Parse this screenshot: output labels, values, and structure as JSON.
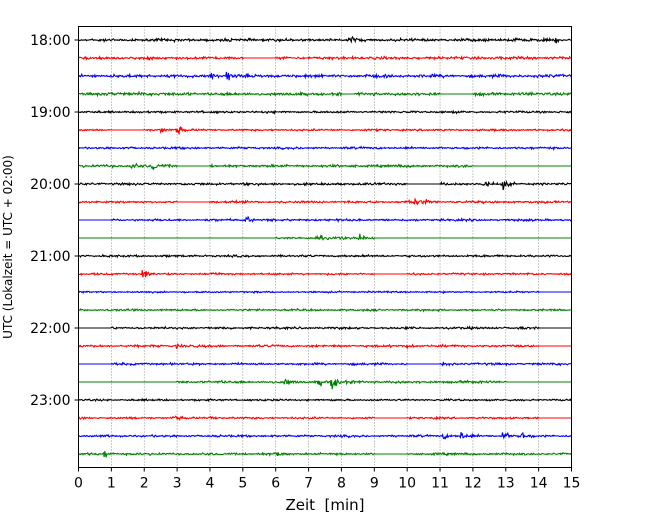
{
  "chart_data": {
    "type": "line",
    "title": "",
    "xlabel": "Zeit  [min]",
    "ylabel": "UTC (Lokalzeit = UTC + 02:00)",
    "xlim": [
      0,
      15
    ],
    "x_ticks": [
      "0",
      "1",
      "2",
      "3",
      "4",
      "5",
      "6",
      "7",
      "8",
      "9",
      "10",
      "11",
      "12",
      "13",
      "14",
      "15"
    ],
    "y_ticks": [
      {
        "label": "18:00",
        "row": 0
      },
      {
        "label": "19:00",
        "row": 4
      },
      {
        "label": "20:00",
        "row": 8
      },
      {
        "label": "21:00",
        "row": 12
      },
      {
        "label": "22:00",
        "row": 16
      },
      {
        "label": "23:00",
        "row": 20
      }
    ],
    "grid": {
      "vertical": true,
      "style": "dotted"
    },
    "row_interval_minutes": 15,
    "color_cycle": [
      "#000000",
      "#ff0000",
      "#0000ff",
      "#008000"
    ],
    "traces": [
      {
        "start": "18:00",
        "color": "#000000",
        "amp": 2.0,
        "gaps": [],
        "events": [
          {
            "t": 8.3,
            "a": 5
          },
          {
            "t": 13.2,
            "a": 3
          },
          {
            "t": 14.5,
            "a": 3
          }
        ]
      },
      {
        "start": "18:15",
        "color": "#ff0000",
        "amp": 2.0,
        "gaps": [
          [
            5.0,
            6.0
          ]
        ],
        "events": []
      },
      {
        "start": "18:30",
        "color": "#0000ff",
        "amp": 2.2,
        "gaps": [],
        "events": [
          {
            "t": 4.05,
            "a": 6
          },
          {
            "t": 4.5,
            "a": 8
          }
        ]
      },
      {
        "start": "18:45",
        "color": "#008000",
        "amp": 2.2,
        "gaps": [
          [
            8.0,
            8.4
          ],
          [
            11.0,
            12.0
          ]
        ],
        "events": [
          {
            "t": 1.8,
            "a": 3
          }
        ]
      },
      {
        "start": "19:00",
        "color": "#000000",
        "amp": 1.6,
        "gaps": [],
        "events": []
      },
      {
        "start": "19:15",
        "color": "#ff0000",
        "amp": 1.4,
        "gaps": [
          [
            1.0,
            2.0
          ]
        ],
        "events": [
          {
            "t": 2.5,
            "a": 5
          },
          {
            "t": 3.0,
            "a": 8
          }
        ]
      },
      {
        "start": "19:30",
        "color": "#0000ff",
        "amp": 1.6,
        "gaps": [],
        "events": []
      },
      {
        "start": "19:45",
        "color": "#008000",
        "amp": 1.8,
        "gaps": [
          [
            3.0,
            4.0
          ],
          [
            12.0,
            15.0
          ]
        ],
        "events": [
          {
            "t": 1.6,
            "a": 6
          },
          {
            "t": 2.25,
            "a": 6
          }
        ]
      },
      {
        "start": "20:00",
        "color": "#000000",
        "amp": 1.8,
        "gaps": [
          [
            10.0,
            11.0
          ]
        ],
        "events": [
          {
            "t": 12.3,
            "a": 5
          },
          {
            "t": 12.9,
            "a": 7
          }
        ]
      },
      {
        "start": "20:15",
        "color": "#ff0000",
        "amp": 1.6,
        "gaps": [
          [
            3.0,
            4.0
          ]
        ],
        "events": [
          {
            "t": 10.1,
            "a": 10
          },
          {
            "t": 10.5,
            "a": 4
          }
        ]
      },
      {
        "start": "20:30",
        "color": "#0000ff",
        "amp": 1.6,
        "gaps": [
          [
            0.0,
            1.0
          ]
        ],
        "events": [
          {
            "t": 5.1,
            "a": 5
          }
        ]
      },
      {
        "start": "20:45",
        "color": "#008000",
        "amp": 1.6,
        "gaps": [
          [
            0.0,
            6.0
          ],
          [
            9.0,
            15.0
          ]
        ],
        "events": [
          {
            "t": 7.3,
            "a": 3
          },
          {
            "t": 8.0,
            "a": 3
          },
          {
            "t": 8.55,
            "a": 5
          }
        ]
      },
      {
        "start": "21:00",
        "color": "#000000",
        "amp": 1.6,
        "gaps": [],
        "events": []
      },
      {
        "start": "21:15",
        "color": "#ff0000",
        "amp": 1.4,
        "gaps": [
          [
            9.0,
            10.0
          ]
        ],
        "events": [
          {
            "t": 1.95,
            "a": 9
          },
          {
            "t": 4.1,
            "a": 3
          }
        ]
      },
      {
        "start": "21:30",
        "color": "#0000ff",
        "amp": 1.2,
        "gaps": [
          [
            14.0,
            15.0
          ]
        ],
        "events": []
      },
      {
        "start": "21:45",
        "color": "#008000",
        "amp": 1.4,
        "gaps": [],
        "events": []
      },
      {
        "start": "22:00",
        "color": "#000000",
        "amp": 1.6,
        "gaps": [
          [
            0.0,
            1.0
          ],
          [
            14.0,
            15.0
          ]
        ],
        "events": []
      },
      {
        "start": "22:15",
        "color": "#ff0000",
        "amp": 1.6,
        "gaps": [
          [
            14.0,
            15.0
          ]
        ],
        "events": [
          {
            "t": 3.0,
            "a": 3
          },
          {
            "t": 10.0,
            "a": 3
          }
        ]
      },
      {
        "start": "22:30",
        "color": "#0000ff",
        "amp": 1.6,
        "gaps": [
          [
            0.0,
            1.0
          ],
          [
            10.0,
            11.0
          ]
        ],
        "events": [
          {
            "t": 11.1,
            "a": 3
          }
        ]
      },
      {
        "start": "22:45",
        "color": "#008000",
        "amp": 1.8,
        "gaps": [
          [
            0.0,
            3.0
          ],
          [
            13.0,
            15.0
          ]
        ],
        "events": [
          {
            "t": 6.3,
            "a": 5
          },
          {
            "t": 7.3,
            "a": 7
          },
          {
            "t": 7.7,
            "a": 11
          }
        ]
      },
      {
        "start": "23:00",
        "color": "#000000",
        "amp": 1.4,
        "gaps": [],
        "events": []
      },
      {
        "start": "23:15",
        "color": "#ff0000",
        "amp": 1.4,
        "gaps": [
          [
            9.0,
            10.0
          ],
          [
            14.0,
            15.0
          ]
        ],
        "events": [
          {
            "t": 2.9,
            "a": 3
          },
          {
            "t": 4.0,
            "a": 3
          }
        ]
      },
      {
        "start": "23:30",
        "color": "#0000ff",
        "amp": 1.6,
        "gaps": [],
        "events": [
          {
            "t": 11.1,
            "a": 4
          },
          {
            "t": 11.65,
            "a": 7
          },
          {
            "t": 12.9,
            "a": 8
          },
          {
            "t": 13.5,
            "a": 5
          }
        ]
      },
      {
        "start": "23:45",
        "color": "#008000",
        "amp": 1.6,
        "gaps": [
          [
            9.0,
            10.0
          ]
        ],
        "events": [
          {
            "t": 0.8,
            "a": 6
          },
          {
            "t": 6.0,
            "a": 3
          }
        ]
      }
    ]
  }
}
